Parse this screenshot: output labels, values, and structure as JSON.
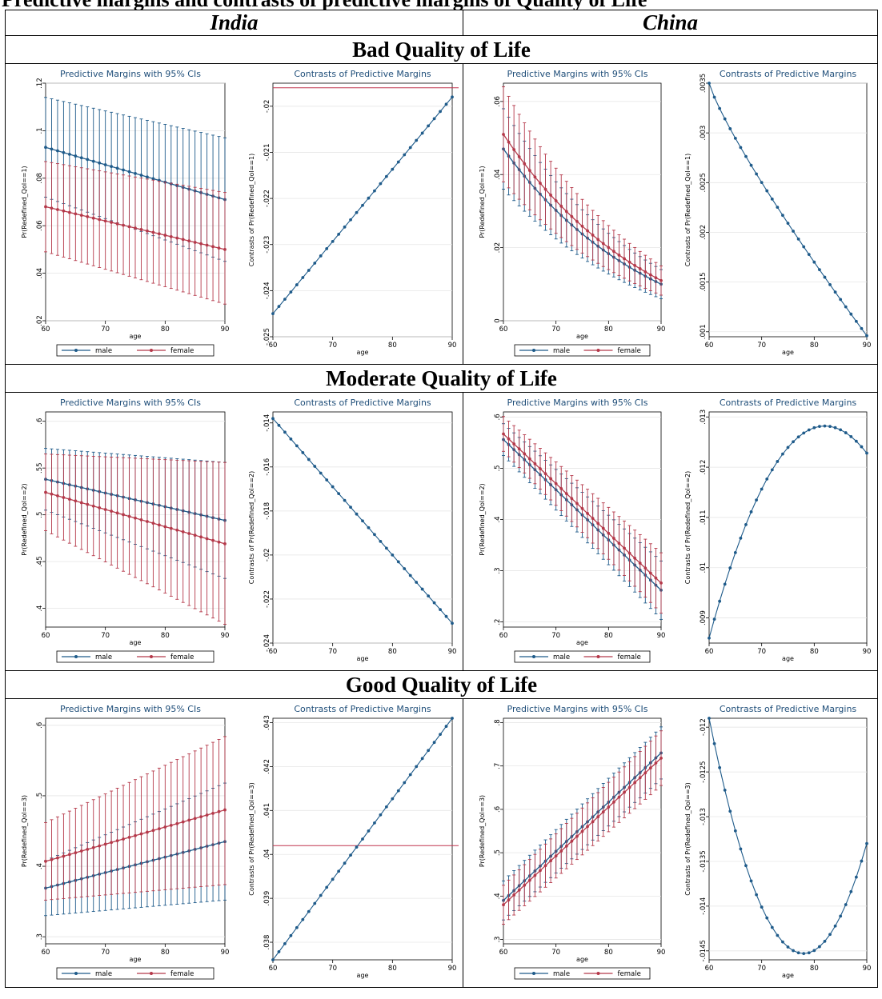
{
  "header": {
    "banner_text": "Predictive margins and contrasts of predictive margins of Quality of Life",
    "col_india": "India",
    "col_china": "China",
    "sections": [
      "Bad Quality of Life",
      "Moderate Quality of Life",
      "Good Quality of Life"
    ]
  },
  "colors": {
    "male": "#1f5b8a",
    "female": "#b5394a",
    "contrast": "#1f5b8a",
    "ref_line": "#c0334d",
    "title": "#1f4e79"
  },
  "legend": {
    "male": "male",
    "female": "female"
  },
  "chart_data": [
    {
      "id": "india-bad-margins",
      "type": "line",
      "title": "Predictive Margins with 95% CIs",
      "xlabel": "age",
      "ylabel": "Pr(Redefined_Qol==1)",
      "xlim": [
        60,
        90
      ],
      "ylim": [
        0.02,
        0.12
      ],
      "xticks": [
        60,
        70,
        80,
        90
      ],
      "yticks": [
        0.02,
        0.04,
        0.06,
        0.08,
        0.1,
        0.12
      ],
      "ytick_labels": [
        ".02",
        ".04",
        ".06",
        ".08",
        ".1",
        ".12"
      ],
      "x": [
        60,
        90
      ],
      "series": [
        {
          "name": "male",
          "values": [
            0.093,
            0.071
          ],
          "ci_low": [
            0.072,
            0.045
          ],
          "ci_high": [
            0.114,
            0.097
          ]
        },
        {
          "name": "female",
          "values": [
            0.068,
            0.05
          ],
          "ci_low": [
            0.049,
            0.027
          ],
          "ci_high": [
            0.087,
            0.074
          ]
        }
      ],
      "legend": "bottom"
    },
    {
      "id": "india-bad-contrasts",
      "type": "line",
      "title": "Contrasts of Predictive Margins",
      "xlabel": "age",
      "ylabel": "Contrasts of Pr(Redefined_Qol==1)",
      "xlim": [
        60,
        90
      ],
      "ylim": [
        -0.025,
        -0.0195
      ],
      "xticks": [
        60,
        70,
        80,
        90
      ],
      "yticks": [
        -0.025,
        -0.024,
        -0.023,
        -0.022,
        -0.021,
        -0.02
      ],
      "ytick_labels": [
        "-.025",
        "-.024",
        "-.023",
        "-.022",
        "-.021",
        "-.02"
      ],
      "x": [
        60,
        90
      ],
      "values": [
        -0.0245,
        -0.0198
      ],
      "shape": "linear",
      "ref_line": -0.0196
    },
    {
      "id": "china-bad-margins",
      "type": "line",
      "title": "Predictive Margins with 95% CIs",
      "xlabel": "age",
      "ylabel": "Pr(Redefined_Qol==1)",
      "xlim": [
        60,
        90
      ],
      "ylim": [
        0,
        0.065
      ],
      "xticks": [
        60,
        70,
        80,
        90
      ],
      "yticks": [
        0,
        0.02,
        0.04,
        0.06
      ],
      "ytick_labels": [
        "0",
        ".02",
        ".04",
        ".06"
      ],
      "x": [
        60,
        90
      ],
      "series": [
        {
          "name": "male",
          "values": [
            0.047,
            0.01
          ],
          "ci_low": [
            0.036,
            0.006
          ],
          "ci_high": [
            0.058,
            0.014
          ],
          "curve": 0.35
        },
        {
          "name": "female",
          "values": [
            0.051,
            0.011
          ],
          "ci_low": [
            0.038,
            0.007
          ],
          "ci_high": [
            0.064,
            0.015
          ],
          "curve": 0.35
        }
      ],
      "legend": "bottom"
    },
    {
      "id": "china-bad-contrasts",
      "type": "line",
      "title": "Contrasts of Predictive Margins",
      "xlabel": "age",
      "ylabel": "Contrasts of Pr(Redefined_Qol==1)",
      "xlim": [
        60,
        90
      ],
      "ylim": [
        0.00095,
        0.0035
      ],
      "xticks": [
        60,
        70,
        80,
        90
      ],
      "yticks": [
        0.001,
        0.0015,
        0.002,
        0.0025,
        0.003,
        0.0035
      ],
      "ytick_labels": [
        ".001",
        ".0015",
        ".002",
        ".0025",
        ".003",
        ".0035"
      ],
      "x": [
        60,
        90
      ],
      "values": [
        0.0035,
        0.00096
      ],
      "shape": "convex-down"
    },
    {
      "id": "india-mod-margins",
      "type": "line",
      "title": "Predictive Margins with 95% CIs",
      "xlabel": "age",
      "ylabel": "Pr(Redefined_Qol==2)",
      "xlim": [
        60,
        90
      ],
      "ylim": [
        0.38,
        0.61
      ],
      "xticks": [
        60,
        70,
        80,
        90
      ],
      "yticks": [
        0.4,
        0.45,
        0.5,
        0.55,
        0.6
      ],
      "ytick_labels": [
        ".4",
        ".45",
        ".5",
        ".55",
        ".6"
      ],
      "x": [
        60,
        90
      ],
      "series": [
        {
          "name": "male",
          "values": [
            0.538,
            0.494
          ],
          "ci_low": [
            0.505,
            0.432
          ],
          "ci_high": [
            0.571,
            0.556
          ]
        },
        {
          "name": "female",
          "values": [
            0.524,
            0.469
          ],
          "ci_low": [
            0.483,
            0.383
          ],
          "ci_high": [
            0.565,
            0.556
          ]
        }
      ],
      "legend": "bottom"
    },
    {
      "id": "india-mod-contrasts",
      "type": "line",
      "title": "Contrasts of Predictive Margins",
      "xlabel": "age",
      "ylabel": "Contrasts of Pr(Redefined_Qol==2)",
      "xlim": [
        60,
        90
      ],
      "ylim": [
        -0.024,
        -0.0135
      ],
      "xticks": [
        60,
        70,
        80,
        90
      ],
      "yticks": [
        -0.024,
        -0.022,
        -0.02,
        -0.018,
        -0.016,
        -0.014
      ],
      "ytick_labels": [
        "-.024",
        "-.022",
        "-.02",
        "-.018",
        "-.016",
        "-.014"
      ],
      "x": [
        60,
        90
      ],
      "values": [
        -0.0138,
        -0.0231
      ],
      "shape": "linear"
    },
    {
      "id": "china-mod-margins",
      "type": "line",
      "title": "Predictive Margins with 95% CIs",
      "xlabel": "age",
      "ylabel": "Pr(Redefined_Qol==2)",
      "xlim": [
        60,
        90
      ],
      "ylim": [
        0.19,
        0.61
      ],
      "xticks": [
        60,
        70,
        80,
        90
      ],
      "yticks": [
        0.2,
        0.3,
        0.4,
        0.5,
        0.6
      ],
      "ytick_labels": [
        ".2",
        ".3",
        ".4",
        ".5",
        ".6"
      ],
      "x": [
        60,
        90
      ],
      "series": [
        {
          "name": "male",
          "values": [
            0.556,
            0.262
          ],
          "ci_low": [
            0.525,
            0.205
          ],
          "ci_high": [
            0.587,
            0.319
          ]
        },
        {
          "name": "female",
          "values": [
            0.567,
            0.276
          ],
          "ci_low": [
            0.533,
            0.217
          ],
          "ci_high": [
            0.601,
            0.335
          ]
        }
      ],
      "legend": "bottom"
    },
    {
      "id": "china-mod-contrasts",
      "type": "line",
      "title": "Contrasts of Predictive Margins",
      "xlabel": "age",
      "ylabel": "Contrasts of Pr(Redefined_Qol==2)",
      "xlim": [
        60,
        90
      ],
      "ylim": [
        0.0085,
        0.0131
      ],
      "xticks": [
        60,
        70,
        80,
        90
      ],
      "yticks": [
        0.009,
        0.01,
        0.011,
        0.012,
        0.013
      ],
      "ytick_labels": [
        ".009",
        ".01",
        ".011",
        ".012",
        ".013"
      ],
      "x": [
        60,
        90
      ],
      "values": [
        0.0086,
        0.01228
      ],
      "shape": "hump",
      "peak_x": 82,
      "peak_y": 0.01282
    },
    {
      "id": "india-good-margins",
      "type": "line",
      "title": "Predictive Margins with 95% CIs",
      "xlabel": "age",
      "ylabel": "Pr(Redefined_Qol==3)",
      "xlim": [
        60,
        90
      ],
      "ylim": [
        0.29,
        0.61
      ],
      "xticks": [
        60,
        70,
        80,
        90
      ],
      "yticks": [
        0.3,
        0.4,
        0.5,
        0.6
      ],
      "ytick_labels": [
        ".3",
        ".4",
        ".5",
        ".6"
      ],
      "x": [
        60,
        90
      ],
      "series": [
        {
          "name": "male",
          "values": [
            0.369,
            0.435
          ],
          "ci_low": [
            0.33,
            0.352
          ],
          "ci_high": [
            0.408,
            0.518
          ]
        },
        {
          "name": "female",
          "values": [
            0.407,
            0.48
          ],
          "ci_low": [
            0.352,
            0.374
          ],
          "ci_high": [
            0.462,
            0.584
          ]
        }
      ],
      "legend": "bottom"
    },
    {
      "id": "india-good-contrasts",
      "type": "line",
      "title": "Contrasts of Predictive Margins",
      "xlabel": "age",
      "ylabel": "Contrasts of Pr(Redefined_Qol==3)",
      "xlim": [
        60,
        90
      ],
      "ylim": [
        0.0376,
        0.0431
      ],
      "xticks": [
        60,
        70,
        80,
        90
      ],
      "yticks": [
        0.038,
        0.039,
        0.04,
        0.041,
        0.042,
        0.043
      ],
      "ytick_labels": [
        ".038",
        ".039",
        ".04",
        ".041",
        ".042",
        ".043"
      ],
      "x": [
        60,
        90
      ],
      "values": [
        0.0376,
        0.0431
      ],
      "shape": "linear",
      "ref_line": 0.0402
    },
    {
      "id": "china-good-margins",
      "type": "line",
      "title": "Predictive Margins with 95% CIs",
      "xlabel": "age",
      "ylabel": "Pr(Redefined_Qol==3)",
      "xlim": [
        60,
        90
      ],
      "ylim": [
        0.29,
        0.81
      ],
      "xticks": [
        60,
        70,
        80,
        90
      ],
      "yticks": [
        0.3,
        0.4,
        0.5,
        0.6,
        0.7,
        0.8
      ],
      "ytick_labels": [
        ".3",
        ".4",
        ".5",
        ".6",
        ".7",
        ".8"
      ],
      "x": [
        60,
        90
      ],
      "series": [
        {
          "name": "male",
          "values": [
            0.39,
            0.73
          ],
          "ci_low": [
            0.345,
            0.67
          ],
          "ci_high": [
            0.435,
            0.79
          ]
        },
        {
          "name": "female",
          "values": [
            0.38,
            0.718
          ],
          "ci_low": [
            0.335,
            0.655
          ],
          "ci_high": [
            0.425,
            0.781
          ]
        }
      ],
      "legend": "bottom"
    },
    {
      "id": "china-good-contrasts",
      "type": "line",
      "title": "Contrasts of Predictive Margins",
      "xlabel": "age",
      "ylabel": "Contrasts of Pr(Redefined_Qol==3)",
      "xlim": [
        60,
        90
      ],
      "ylim": [
        -0.0146,
        -0.0119
      ],
      "xticks": [
        60,
        70,
        80,
        90
      ],
      "yticks": [
        -0.0145,
        -0.014,
        -0.0135,
        -0.013,
        -0.0125,
        -0.012
      ],
      "ytick_labels": [
        "-.0145",
        "-.014",
        "-.0135",
        "-.013",
        "-.0125",
        "-.012"
      ],
      "x": [
        60,
        90
      ],
      "values": [
        -0.0119,
        -0.0133
      ],
      "shape": "valley",
      "min_x": 78,
      "min_y": -0.01453
    }
  ]
}
